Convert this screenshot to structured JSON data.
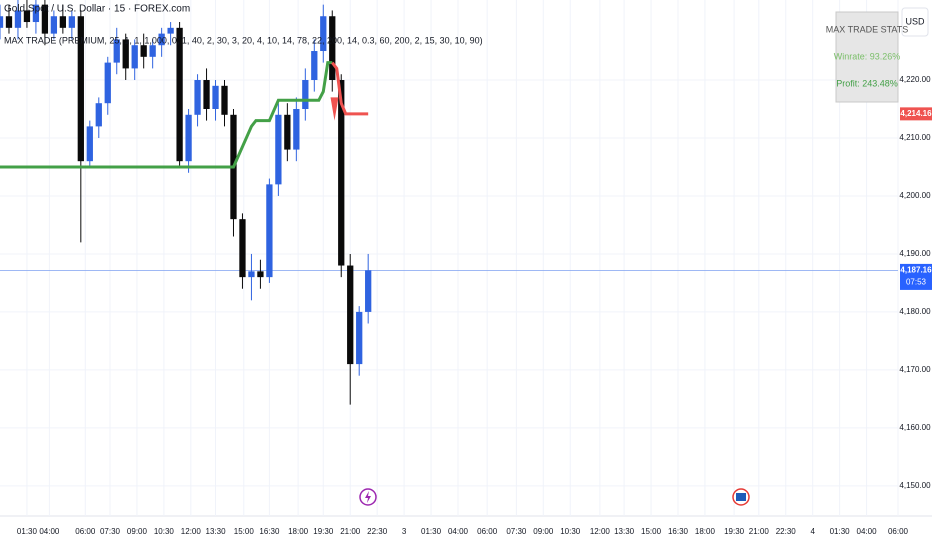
{
  "chart_data": {
    "type": "candlestick",
    "title": "Gold Spot / U.S. Dollar · 15 · FOREX.com",
    "subtitle": "MAX TRADE (PREMIUM, 25, 1, 1, 1,000, 0, 1, 40, 2, 30, 3, 20, 4, 10, 14, 78, 22, 200, 14, 0.3, 60, 200, 2, 15, 30, 10, 90)",
    "currency": "USD",
    "x": [
      0,
      2,
      4,
      6,
      8,
      10,
      12,
      14,
      16,
      18,
      20,
      22,
      24,
      26,
      28,
      30,
      32,
      34,
      36,
      38,
      40,
      42,
      44,
      46,
      48,
      50,
      52,
      54,
      56,
      58,
      60,
      62,
      64,
      66,
      68,
      70,
      72,
      74,
      76,
      78,
      80,
      82
    ],
    "open": [
      4229,
      4231,
      4229,
      4232,
      4230,
      4233,
      4228,
      4231,
      4229,
      4231,
      4206,
      4212,
      4216,
      4223,
      4227,
      4222,
      4226,
      4224,
      4226,
      4228,
      4229,
      4206,
      4214,
      4220,
      4215,
      4219,
      4214,
      4196,
      4186,
      4187,
      4186,
      4202,
      4214,
      4208,
      4215,
      4220,
      4225,
      4231,
      4220,
      4188,
      4171,
      4180
    ],
    "high": [
      4233,
      4233,
      4234,
      4234,
      4234,
      4234,
      4232,
      4233,
      4232,
      4232,
      4213,
      4217,
      4224,
      4229,
      4228,
      4227,
      4228,
      4227,
      4229,
      4230,
      4230,
      4215,
      4221,
      4222,
      4220,
      4220,
      4215,
      4197,
      4190,
      4189,
      4203,
      4216,
      4216,
      4217,
      4222,
      4227,
      4233,
      4232,
      4221,
      4190,
      4181,
      4190
    ],
    "low": [
      4227,
      4228,
      4227,
      4229,
      4228,
      4226,
      4227,
      4228,
      4227,
      4192,
      4205,
      4210,
      4214,
      4221,
      4220,
      4220,
      4222,
      4222,
      4224,
      4226,
      4205,
      4204,
      4212,
      4213,
      4213,
      4212,
      4193,
      4184,
      4182,
      4184,
      4185,
      4200,
      4206,
      4206,
      4213,
      4218,
      4223,
      4218,
      4186,
      4164,
      4169,
      4178
    ],
    "close": [
      4231,
      4229,
      4232,
      4230,
      4233,
      4228,
      4231,
      4229,
      4231,
      4206,
      4212,
      4216,
      4223,
      4227,
      4222,
      4226,
      4224,
      4226,
      4228,
      4229,
      4206,
      4214,
      4220,
      4215,
      4219,
      4214,
      4196,
      4186,
      4187,
      4186,
      4202,
      4214,
      4208,
      4215,
      4220,
      4225,
      4231,
      4220,
      4188,
      4171,
      4180,
      4187.16
    ],
    "up_color": "#2f63e0",
    "down_color": "#0a0a0a",
    "lines": [
      {
        "color": "#43a047",
        "x": [
          0,
          52,
          56,
          57,
          60,
          62,
          71,
          72,
          73,
          74
        ],
        "values": [
          4205,
          4205,
          4212,
          4213,
          4213,
          4216.5,
          4216.5,
          4218,
          4223,
          4223
        ]
      },
      {
        "color": "#ef5350",
        "x": [
          74,
          75,
          76,
          77,
          80,
          82
        ],
        "values": [
          4223,
          4222,
          4216,
          4214.16,
          4214.16,
          4214.16
        ]
      }
    ],
    "xlim": [
      0,
      200
    ],
    "ylim": [
      4144.8,
      4233.8
    ],
    "yticks": [
      {
        "value": 4150,
        "label": "4,150.00"
      },
      {
        "value": 4160,
        "label": "4,160.00"
      },
      {
        "value": 4170,
        "label": "4,170.00"
      },
      {
        "value": 4180,
        "label": "4,180.00"
      },
      {
        "value": 4190,
        "label": "4,190.00"
      },
      {
        "value": 4200,
        "label": "4,200.00"
      },
      {
        "value": 4210,
        "label": "4,210.00"
      },
      {
        "value": 4220,
        "label": "4,220.00"
      }
    ],
    "xticks": [
      {
        "value": 6,
        "label": "01:30"
      },
      {
        "value": 11,
        "label": "04:00"
      },
      {
        "value": 19,
        "label": "06:00"
      },
      {
        "value": 24.5,
        "label": "07:30"
      },
      {
        "value": 30.5,
        "label": "09:00"
      },
      {
        "value": 36.5,
        "label": "10:30"
      },
      {
        "value": 42.5,
        "label": "12:00"
      },
      {
        "value": 48,
        "label": "13:30"
      },
      {
        "value": 54.3,
        "label": "15:00"
      },
      {
        "value": 60,
        "label": "16:30"
      },
      {
        "value": 66.4,
        "label": "18:00"
      },
      {
        "value": 72,
        "label": "19:30"
      },
      {
        "value": 78,
        "label": "21:00"
      },
      {
        "value": 84,
        "label": "22:30"
      },
      {
        "value": 90,
        "label": "3"
      },
      {
        "value": 96,
        "label": "01:30"
      },
      {
        "value": 102,
        "label": "04:00"
      },
      {
        "value": 108.5,
        "label": "06:00"
      },
      {
        "value": 115,
        "label": "07:30"
      },
      {
        "value": 121,
        "label": "09:00"
      },
      {
        "value": 127,
        "label": "10:30"
      },
      {
        "value": 133.6,
        "label": "12:00"
      },
      {
        "value": 139,
        "label": "13:30"
      },
      {
        "value": 145,
        "label": "15:00"
      },
      {
        "value": 151,
        "label": "16:30"
      },
      {
        "value": 157,
        "label": "18:00"
      },
      {
        "value": 163.5,
        "label": "19:30"
      },
      {
        "value": 169,
        "label": "21:00"
      },
      {
        "value": 175,
        "label": "22:30"
      },
      {
        "value": 181,
        "label": "4"
      },
      {
        "value": 187,
        "label": "01:30"
      },
      {
        "value": 193,
        "label": "04:00"
      },
      {
        "value": 200,
        "label": "06:00"
      }
    ],
    "price_labels": [
      {
        "value": 4214.16,
        "label": "4,214.16",
        "color": "#ef5350"
      },
      {
        "value": 4187.16,
        "label": "4,187.16",
        "color": "#2962ff"
      }
    ],
    "countdown": "07:53",
    "stats": {
      "title": "MAX TRADE STATS",
      "winrate": "Winrate: 93.26%",
      "profit": "Profit: 243.48%"
    },
    "grid": true
  }
}
